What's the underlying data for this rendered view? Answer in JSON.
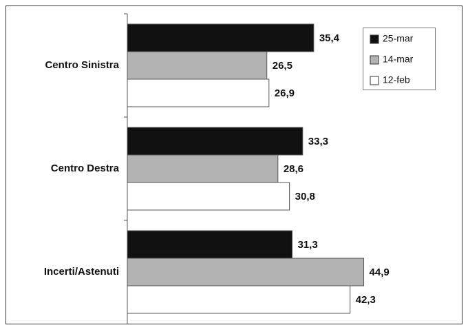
{
  "chart_data": {
    "type": "hbar",
    "categories": [
      "Centro Sinistra",
      "Centro Destra",
      "Incerti/Astenuti"
    ],
    "series": [
      {
        "name": "25-mar",
        "color": "#111111",
        "values": [
          35.4,
          33.3,
          31.3
        ],
        "value_labels": [
          "35,4",
          "33,3",
          "31,3"
        ]
      },
      {
        "name": "14-mar",
        "color": "#b3b3b3",
        "values": [
          26.5,
          28.6,
          44.9
        ],
        "value_labels": [
          "26,5",
          "28,6",
          "44,9"
        ]
      },
      {
        "name": "12-feb",
        "color": "#ffffff",
        "values": [
          26.9,
          30.8,
          42.3
        ],
        "value_labels": [
          "26,9",
          "30,8",
          "42,3"
        ]
      }
    ],
    "xlim": [
      0,
      63
    ]
  }
}
